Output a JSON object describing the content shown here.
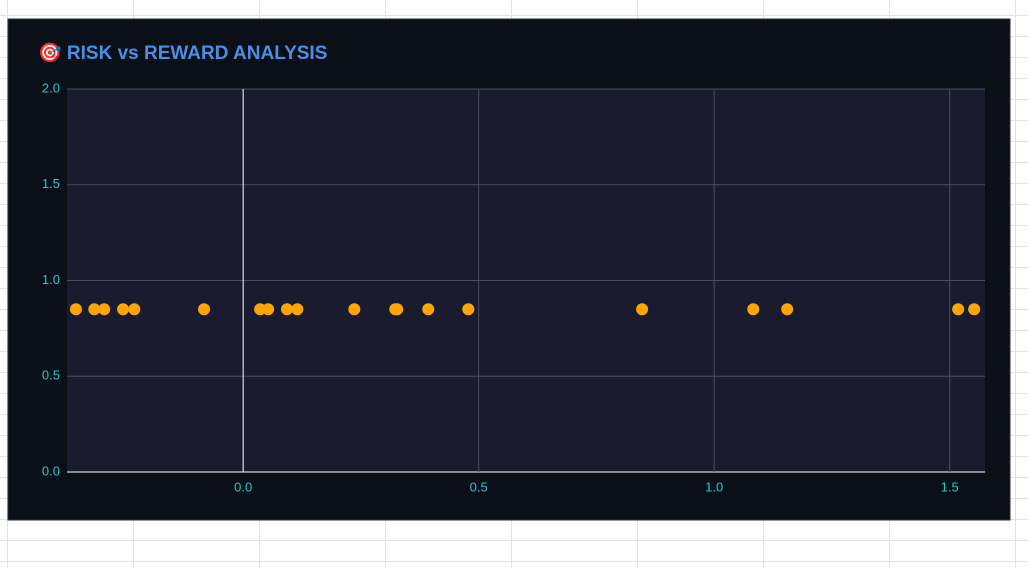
{
  "chart_data": {
    "type": "scatter",
    "title": "🎯 RISK vs REWARD ANALYSIS",
    "x": [
      -0.355,
      -0.316,
      -0.295,
      -0.255,
      -0.231,
      -0.083,
      0.036,
      0.053,
      0.093,
      0.115,
      0.236,
      0.323,
      0.327,
      0.393,
      0.478,
      0.847,
      1.083,
      1.155,
      1.518,
      1.552
    ],
    "values": [
      0.85,
      0.85,
      0.85,
      0.85,
      0.85,
      0.85,
      0.85,
      0.85,
      0.85,
      0.85,
      0.85,
      0.85,
      0.85,
      0.85,
      0.85,
      0.85,
      0.85,
      0.85,
      0.85,
      0.85
    ],
    "color": "#ffa500",
    "xlim": [
      -0.374,
      1.575
    ],
    "ylim": [
      0,
      2
    ],
    "xticks": [
      {
        "value": 0,
        "label": "0.0"
      },
      0.5,
      {
        "value": 1,
        "label": "1.0"
      },
      1.5
    ],
    "yticks": [
      {
        "value": 0,
        "label": "0.0"
      },
      0.5,
      {
        "value": 1,
        "label": "1.0"
      },
      1.5,
      {
        "value": 2,
        "label": "2.0"
      }
    ],
    "grid": true
  }
}
